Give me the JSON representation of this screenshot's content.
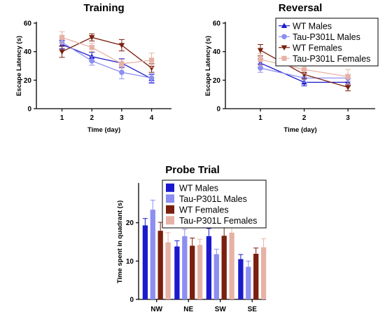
{
  "colors": {
    "wt_males": "#1a1acc",
    "tau_males": "#8c8ff0",
    "wt_females": "#7a1f0e",
    "tau_females": "#e7b2a6"
  },
  "chart_data": [
    {
      "type": "line",
      "title": "Training",
      "xlabel": "Time (day)",
      "ylabel": "Escape Latency (s)",
      "x": [
        1,
        2,
        3,
        4
      ],
      "ylim": [
        0,
        60
      ],
      "yticks": [
        0,
        20,
        40,
        60
      ],
      "series": [
        {
          "name": "WT Males",
          "color": "#1a1acc",
          "marker": "triangle-up",
          "values": [
            45,
            36.5,
            32,
            21
          ],
          "err": [
            3,
            3,
            3,
            3
          ]
        },
        {
          "name": "Tau-P301L Males",
          "color": "#8c8ff0",
          "marker": "circle",
          "values": [
            46.5,
            33.5,
            25.5,
            21.5
          ],
          "err": [
            3,
            3,
            4.5,
            3
          ]
        },
        {
          "name": "WT Females",
          "color": "#7a1f0e",
          "marker": "triangle-down",
          "values": [
            40,
            50,
            44.5,
            28.5
          ],
          "err": [
            4,
            2.5,
            4,
            3
          ]
        },
        {
          "name": "Tau-P301L Females",
          "color": "#e7b2a6",
          "marker": "square",
          "values": [
            50,
            43,
            31.5,
            34
          ],
          "err": [
            4,
            3,
            3,
            5
          ]
        }
      ]
    },
    {
      "type": "line",
      "title": "Reversal",
      "xlabel": "Time (day)",
      "ylabel": "Escape Latency (s)",
      "x": [
        1,
        2,
        3
      ],
      "ylim": [
        0,
        60
      ],
      "yticks": [
        0,
        20,
        40,
        60
      ],
      "series": [
        {
          "name": "WT Males",
          "color": "#1a1acc",
          "marker": "triangle-up",
          "values": [
            32,
            18.5,
            18.5
          ],
          "err": [
            3,
            2.5,
            2.5
          ]
        },
        {
          "name": "Tau-P301L Males",
          "color": "#8c8ff0",
          "marker": "circle",
          "values": [
            28.5,
            21.5,
            21.5
          ],
          "err": [
            3,
            3,
            2.5
          ]
        },
        {
          "name": "WT Females",
          "color": "#7a1f0e",
          "marker": "triangle-down",
          "values": [
            41,
            24,
            15
          ],
          "err": [
            4,
            3,
            2.5
          ]
        },
        {
          "name": "Tau-P301L Females",
          "color": "#e7b2a6",
          "marker": "square",
          "values": [
            34.5,
            27.5,
            22.5
          ],
          "err": [
            4,
            3,
            5
          ]
        }
      ]
    },
    {
      "type": "bar",
      "title": "Probe Trial",
      "xlabel": "",
      "ylabel": "Time spent in quadrant (s)",
      "categories": [
        "NW",
        "NE",
        "SW",
        "SE"
      ],
      "ylim": [
        0,
        30
      ],
      "yticks": [
        0,
        10,
        20
      ],
      "series": [
        {
          "name": "WT Males",
          "color": "#1a1acc",
          "values": [
            19.3,
            13.8,
            16.5,
            10.5
          ],
          "err": [
            1.8,
            1.5,
            2,
            1.2
          ]
        },
        {
          "name": "Tau-P301L Males",
          "color": "#8c8ff0",
          "values": [
            23.4,
            16.5,
            11.8,
            8.5
          ],
          "err": [
            2.5,
            1.8,
            1.3,
            1.5
          ]
        },
        {
          "name": "WT Females",
          "color": "#7a1f0e",
          "values": [
            17.9,
            14,
            16.6,
            11.9
          ],
          "err": [
            2.2,
            2,
            2.3,
            1.5
          ]
        },
        {
          "name": "Tau-P301L Females",
          "color": "#e7b2a6",
          "values": [
            14.9,
            14.2,
            17.4,
            13.6
          ],
          "err": [
            2.5,
            1.5,
            1.8,
            2.2
          ]
        }
      ]
    }
  ]
}
